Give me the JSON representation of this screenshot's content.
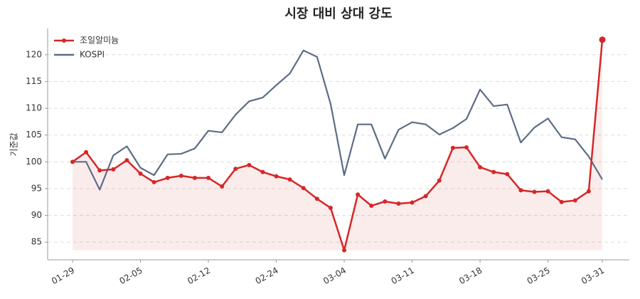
{
  "chart_data": {
    "type": "line",
    "title": "시장 대비 상대 강도",
    "y_label": "기준값",
    "categories": [
      "01-29",
      null,
      null,
      null,
      null,
      "02-05",
      null,
      null,
      null,
      null,
      "02-12",
      null,
      null,
      null,
      null,
      "02-24",
      null,
      null,
      null,
      null,
      "03-04",
      null,
      null,
      null,
      null,
      "03-11",
      null,
      null,
      null,
      null,
      "03-18",
      null,
      null,
      null,
      null,
      "03-25",
      null,
      null,
      null,
      "03-31"
    ],
    "series": [
      {
        "name": "조일알미늄",
        "color": "#d62728",
        "markers": true,
        "fill": true,
        "values": [
          100,
          101.8,
          98.4,
          98.6,
          100.3,
          97.8,
          96.2,
          97.0,
          97.4,
          97.0,
          97.0,
          95.4,
          98.7,
          99.4,
          98.1,
          97.3,
          96.7,
          95.1,
          93.1,
          91.4,
          83.5,
          93.9,
          91.8,
          92.6,
          92.2,
          92.4,
          93.6,
          96.5,
          102.6,
          102.7,
          99.0,
          98.1,
          97.7,
          94.7,
          94.4,
          94.5,
          92.5,
          92.8,
          94.5,
          122.8
        ]
      },
      {
        "name": "KOSPI",
        "color": "#5d6d85",
        "markers": false,
        "fill": false,
        "values": [
          100,
          100,
          94.8,
          101.2,
          102.9,
          98.9,
          97.5,
          101.4,
          101.5,
          102.5,
          105.8,
          105.5,
          108.8,
          111.3,
          112.0,
          114.3,
          116.5,
          120.8,
          119.6,
          110.8,
          97.5,
          107.0,
          107.0,
          100.6,
          106.0,
          107.4,
          107.0,
          105.1,
          106.3,
          108.0,
          113.5,
          110.4,
          110.7,
          103.6,
          106.4,
          108.1,
          104.6,
          104.2,
          101.0,
          96.7
        ]
      }
    ],
    "ylim": [
      81.7,
      124.9
    ],
    "yticks": [
      85,
      90,
      95,
      100,
      105,
      110,
      115,
      120
    ],
    "grid": true,
    "legend": "upper left"
  }
}
